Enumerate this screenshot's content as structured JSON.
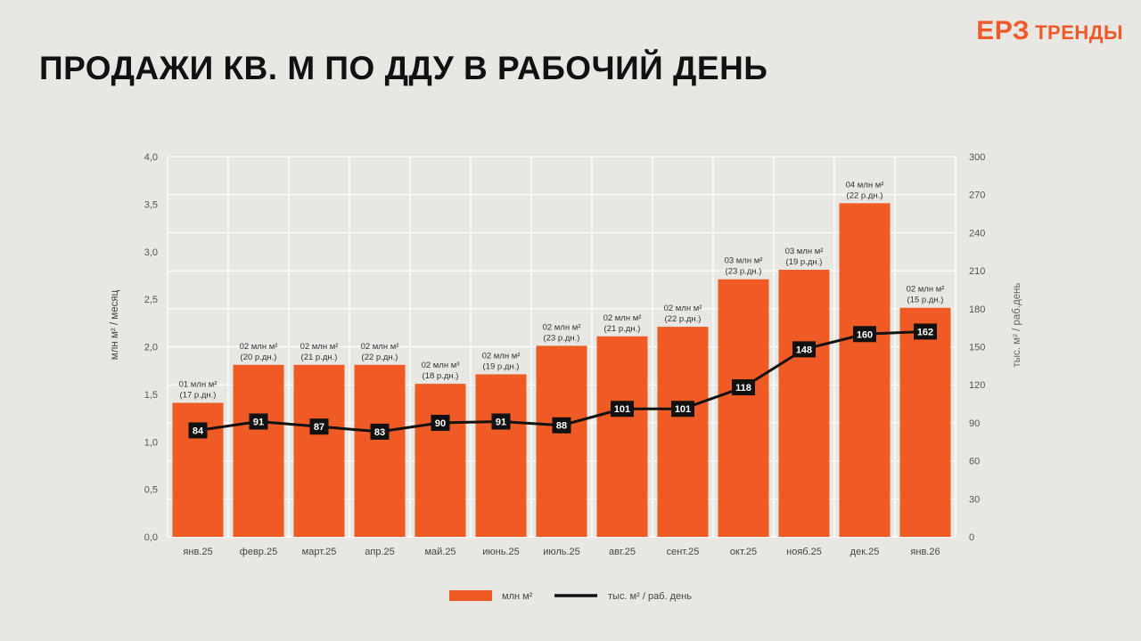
{
  "header": {
    "title": "ПРОДАЖИ КВ. М ПО ДДУ В РАБОЧИЙ ДЕНЬ",
    "logo_main": "ЕРЗ",
    "logo_sub": "ТРЕНДЫ"
  },
  "colors": {
    "bar": "#f05a24",
    "line": "#111111",
    "background": "#e9e7e3",
    "grid": "#ffffff",
    "accent": "#ef5a28"
  },
  "chart_data": {
    "type": "bar",
    "title": "ПРОДАЖИ КВ. М ПО ДДУ В РАБОЧИЙ ДЕНЬ",
    "categories": [
      "янв.25",
      "февр.25",
      "март.25",
      "апр.25",
      "май.25",
      "июнь.25",
      "июль.25",
      "авг.25",
      "сент.25",
      "окт.25",
      "нояб.25",
      "дек.25",
      "янв.26"
    ],
    "ylabel": "млн м² / месяц",
    "y2label": "тыс. м² / раб.день",
    "ylim": [
      0,
      4.0
    ],
    "y2lim": [
      0,
      300
    ],
    "yticks": [
      "0,0",
      "0,5",
      "1,0",
      "1,5",
      "2,0",
      "2,5",
      "3,0",
      "3,5",
      "4,0"
    ],
    "y2ticks": [
      "0",
      "30",
      "60",
      "90",
      "120",
      "150",
      "180",
      "210",
      "240",
      "270",
      "300"
    ],
    "series": [
      {
        "name": "млн м²",
        "type": "bar",
        "axis": "left",
        "values": [
          1.41,
          1.81,
          1.81,
          1.81,
          1.61,
          1.71,
          2.01,
          2.11,
          2.21,
          2.71,
          2.81,
          3.51,
          2.41
        ],
        "labels": [
          [
            "01 млн м²",
            "(17 р.дн.)"
          ],
          [
            "02 млн м²",
            "(20 р.дн.)"
          ],
          [
            "02 млн м²",
            "(21 р.дн.)"
          ],
          [
            "02 млн м²",
            "(22 р.дн.)"
          ],
          [
            "02 млн м³",
            "(18 р.дн.)"
          ],
          [
            "02 млн м²",
            "(19 р.дн.)"
          ],
          [
            "02 млн м²",
            "(23 р.дн.)"
          ],
          [
            "02 млн м²",
            "(21 р.дн.)"
          ],
          [
            "02 млн м²",
            "(22 р.дн.)"
          ],
          [
            "03 млн м²",
            "(23 р.дн.)"
          ],
          [
            "03 млн м²",
            "(19 р.дн.)"
          ],
          [
            "04 млн м²",
            "(22 р.дн.)"
          ],
          [
            "02 млн м²",
            "(15 р.дн.)"
          ]
        ]
      },
      {
        "name": "тыс. м² / раб. день",
        "type": "line",
        "axis": "right",
        "values": [
          84,
          91,
          87,
          83,
          90,
          91,
          88,
          101,
          101,
          118,
          148,
          160,
          162
        ]
      }
    ],
    "legend_position": "bottom-center",
    "grid": true
  }
}
